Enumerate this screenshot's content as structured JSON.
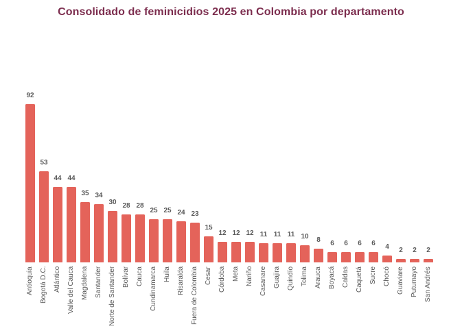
{
  "chart_data": {
    "type": "bar",
    "title": "Consolidado de feminicidios 2025 en Colombia por departamento",
    "xlabel": "",
    "ylabel": "",
    "categories": [
      "Antioquia",
      "Bogotá D.C.",
      "Atlántico",
      "Valle del Cauca",
      "Magdalena",
      "Santander",
      "Norte de Santander",
      "Bolívar",
      "Cauca",
      "Cundinamarca",
      "Huila",
      "Risaralda",
      "Fuera de Colombia",
      "Cesar",
      "Córdoba",
      "Meta",
      "Nariño",
      "Casanare",
      "Guajira",
      "Quindío",
      "Tolima",
      "Arauca",
      "Boyacá",
      "Caldas",
      "Caquetá",
      "Sucre",
      "Chocó",
      "Guaviare",
      "Putumayo",
      "San Andrés"
    ],
    "values": [
      92,
      53,
      44,
      44,
      35,
      34,
      30,
      28,
      28,
      25,
      25,
      24,
      23,
      15,
      12,
      12,
      12,
      11,
      11,
      11,
      10,
      8,
      6,
      6,
      6,
      6,
      4,
      2,
      2,
      2
    ],
    "value_labels_shown": true,
    "grid": false,
    "legend": "none",
    "axis_lines": false,
    "ylim": [
      0,
      100
    ],
    "colors": {
      "bar": "#e4635a",
      "title": "#7c2d4e",
      "value_label": "#595959",
      "category_label": "#595959",
      "background": "#ffffff"
    }
  }
}
